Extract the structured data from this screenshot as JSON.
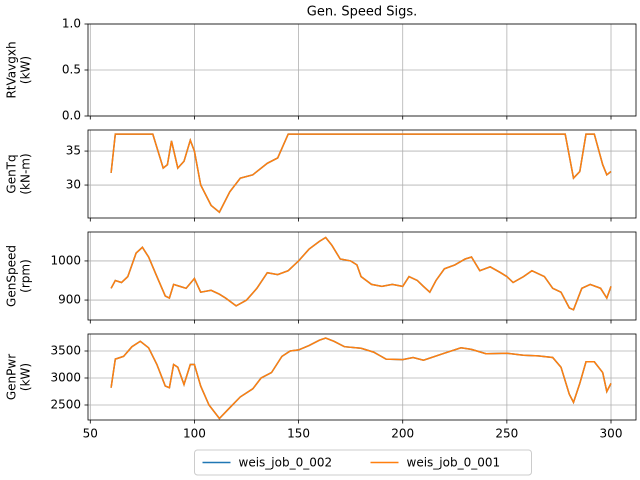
{
  "chart_data": [
    {
      "type": "line",
      "title": "Gen. Speed Sigs.",
      "ylabel": [
        "RtVavgxh",
        "(kW)"
      ],
      "xlim": [
        48.9,
        312
      ],
      "xticks": [
        50,
        100,
        150,
        200,
        250,
        300
      ],
      "ylim": [
        0,
        1
      ],
      "yticks": [
        {
          "value": 0,
          "label": "0.0"
        },
        {
          "value": 0.5,
          "label": "0.5"
        },
        {
          "value": 1,
          "label": "1.0"
        }
      ],
      "grid": true
    },
    {
      "type": "line",
      "ylabel": [
        "GenTq",
        "(kN-m)"
      ],
      "xlim": [
        48.9,
        312
      ],
      "xticks": [
        50,
        100,
        150,
        200,
        250,
        300
      ],
      "ylim": [
        25.15,
        38.1
      ],
      "yticks": [
        30,
        35
      ],
      "grid": true,
      "x": [
        60,
        62,
        65,
        73,
        80,
        85,
        87,
        89,
        92,
        95,
        98,
        100,
        103,
        108,
        112,
        117,
        122,
        128,
        135,
        140,
        145,
        150,
        278,
        282,
        285,
        288,
        292,
        296,
        298,
        300
      ],
      "series": [
        {
          "name": "weis_job_0_002",
          "color": "#1f77b4",
          "values": [
            31.8,
            37.5,
            37.5,
            37.5,
            37.5,
            32.5,
            33,
            36.5,
            32.5,
            33.5,
            36.6,
            35,
            30,
            27,
            26,
            29,
            31,
            31.5,
            33.2,
            34,
            37.5,
            37.5,
            37.5,
            31,
            32,
            37.5,
            37.5,
            33,
            31.5,
            32
          ]
        },
        {
          "name": "weis_job_0_001",
          "color": "#ff7f0e",
          "values": [
            31.8,
            37.5,
            37.5,
            37.5,
            37.5,
            32.5,
            33,
            36.5,
            32.5,
            33.5,
            36.6,
            35,
            30,
            27,
            26,
            29,
            31,
            31.5,
            33.2,
            34,
            37.5,
            37.5,
            37.5,
            31,
            32,
            37.5,
            37.5,
            33,
            31.5,
            32
          ]
        }
      ]
    },
    {
      "type": "line",
      "ylabel": [
        "GenSpeed",
        "(rpm)"
      ],
      "xlim": [
        48.9,
        312
      ],
      "xticks": [
        50,
        100,
        150,
        200,
        250,
        300
      ],
      "ylim": [
        849,
        1074
      ],
      "yticks": [
        900,
        1000
      ],
      "grid": true,
      "x": [
        60,
        62,
        65,
        68,
        72,
        75,
        78,
        82,
        86,
        88,
        90,
        93,
        96,
        100,
        103,
        108,
        112,
        115,
        120,
        125,
        130,
        135,
        140,
        145,
        150,
        155,
        160,
        163,
        166,
        170,
        175,
        178,
        180,
        185,
        190,
        195,
        200,
        203,
        207,
        210,
        213,
        216,
        220,
        225,
        230,
        233,
        237,
        242,
        247,
        250,
        253,
        258,
        262,
        268,
        272,
        276,
        280,
        282,
        286,
        290,
        295,
        298,
        300
      ],
      "series": [
        {
          "name": "weis_job_0_002",
          "color": "#1f77b4",
          "values": [
            930,
            950,
            945,
            960,
            1020,
            1035,
            1010,
            960,
            910,
            905,
            940,
            935,
            930,
            955,
            920,
            925,
            915,
            905,
            885,
            900,
            930,
            970,
            965,
            975,
            1000,
            1030,
            1050,
            1060,
            1040,
            1005,
            1000,
            990,
            960,
            940,
            935,
            940,
            935,
            960,
            950,
            935,
            920,
            950,
            980,
            990,
            1005,
            1010,
            975,
            985,
            970,
            960,
            945,
            960,
            975,
            960,
            930,
            920,
            880,
            875,
            930,
            940,
            930,
            905,
            935
          ]
        },
        {
          "name": "weis_job_0_001",
          "color": "#ff7f0e",
          "values": [
            930,
            950,
            945,
            960,
            1020,
            1035,
            1010,
            960,
            910,
            905,
            940,
            935,
            930,
            955,
            920,
            925,
            915,
            905,
            885,
            900,
            930,
            970,
            965,
            975,
            1000,
            1030,
            1050,
            1060,
            1040,
            1005,
            1000,
            990,
            960,
            940,
            935,
            940,
            935,
            960,
            950,
            935,
            920,
            950,
            980,
            990,
            1005,
            1010,
            975,
            985,
            970,
            960,
            945,
            960,
            975,
            960,
            930,
            920,
            880,
            875,
            930,
            940,
            930,
            905,
            935
          ]
        }
      ]
    },
    {
      "type": "line",
      "ylabel": [
        "GenPwr",
        "(kW)"
      ],
      "xlim": [
        48.9,
        312
      ],
      "xticks": [
        50,
        100,
        150,
        200,
        250,
        300
      ],
      "ylim": [
        2222,
        3815
      ],
      "yticks": [
        2500,
        3000,
        3500
      ],
      "grid": true,
      "legend": "lower center",
      "x": [
        60,
        62,
        66,
        70,
        74,
        78,
        82,
        86,
        88,
        90,
        92,
        95,
        98,
        100,
        103,
        107,
        112,
        117,
        122,
        128,
        132,
        137,
        142,
        146,
        150,
        155,
        160,
        163,
        167,
        172,
        180,
        186,
        192,
        200,
        205,
        210,
        220,
        228,
        233,
        240,
        250,
        258,
        265,
        272,
        276,
        280,
        282,
        285,
        288,
        292,
        296,
        298,
        300
      ],
      "series": [
        {
          "name": "weis_job_0_002",
          "color": "#1f77b4",
          "values": [
            2820,
            3350,
            3400,
            3580,
            3680,
            3560,
            3250,
            2850,
            2820,
            3250,
            3200,
            2880,
            3250,
            3250,
            2850,
            2500,
            2250,
            2450,
            2650,
            2800,
            3000,
            3100,
            3400,
            3500,
            3520,
            3600,
            3700,
            3740,
            3680,
            3580,
            3550,
            3480,
            3350,
            3340,
            3380,
            3330,
            3460,
            3560,
            3530,
            3450,
            3460,
            3420,
            3410,
            3380,
            3200,
            2700,
            2550,
            2900,
            3300,
            3300,
            3100,
            2750,
            2900
          ]
        },
        {
          "name": "weis_job_0_001",
          "color": "#ff7f0e",
          "values": [
            2820,
            3350,
            3400,
            3580,
            3680,
            3560,
            3250,
            2850,
            2820,
            3250,
            3200,
            2880,
            3250,
            3250,
            2850,
            2500,
            2250,
            2450,
            2650,
            2800,
            3000,
            3100,
            3400,
            3500,
            3520,
            3600,
            3700,
            3740,
            3680,
            3580,
            3550,
            3480,
            3350,
            3340,
            3380,
            3330,
            3460,
            3560,
            3530,
            3450,
            3460,
            3420,
            3410,
            3380,
            3200,
            2700,
            2550,
            2900,
            3300,
            3300,
            3100,
            2750,
            2900
          ]
        }
      ]
    }
  ]
}
